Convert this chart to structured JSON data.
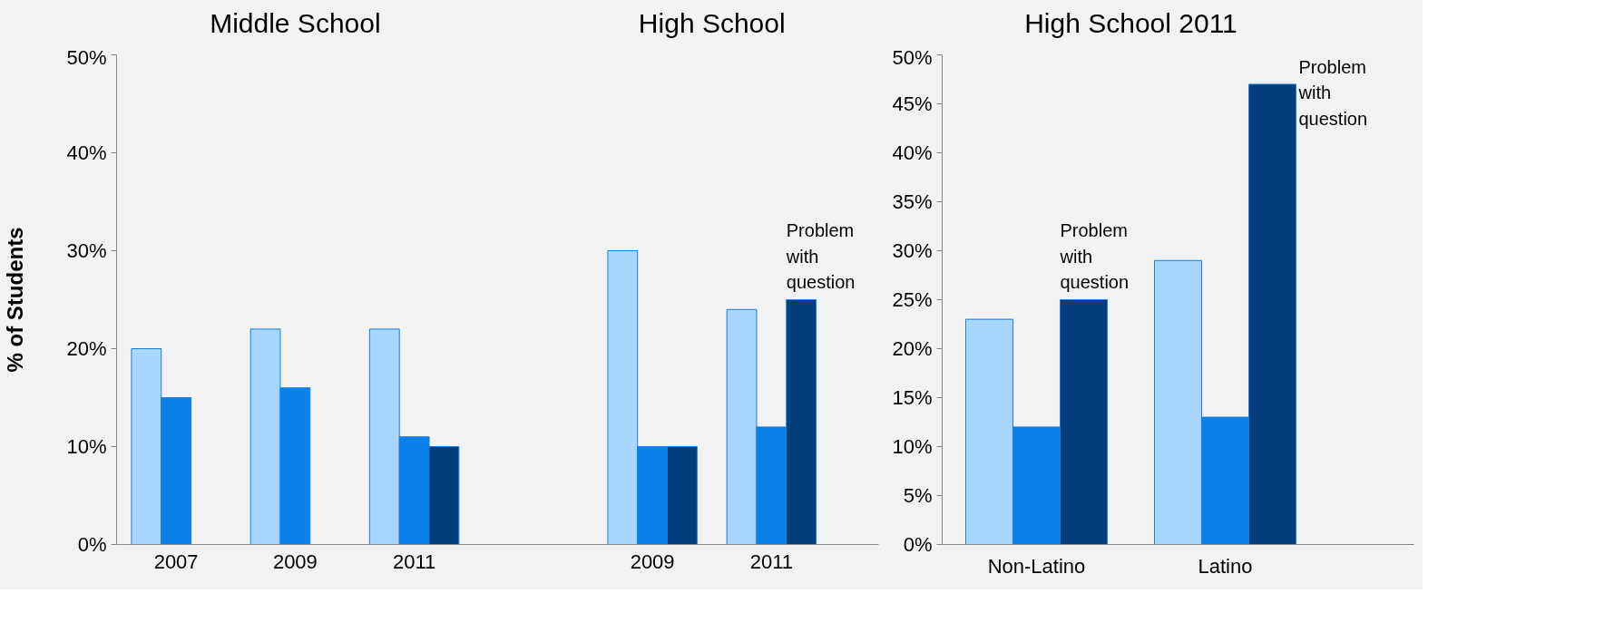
{
  "chart_data": [
    {
      "type": "bar",
      "title": "Middle School",
      "ylabel": "% of Students",
      "categories": [
        "2007",
        "2009",
        "2011",
        null,
        "2009",
        "2011"
      ],
      "series": [
        {
          "color": "#a9d6ff",
          "values": [
            20,
            22,
            22,
            null,
            30,
            24
          ]
        },
        {
          "color": "#0a80e8",
          "values": [
            15,
            16,
            11,
            null,
            10,
            12
          ]
        },
        {
          "color": "#003d79",
          "values": [
            null,
            null,
            10,
            null,
            10,
            25
          ]
        }
      ],
      "annotations": [
        "High School",
        "Problem with question"
      ],
      "ylim": [
        0,
        50
      ],
      "yticks": [
        {
          "value": 0,
          "label": "0%"
        },
        {
          "value": 10,
          "label": "10%"
        },
        {
          "value": 20,
          "label": "20%"
        },
        {
          "value": 30,
          "label": "30%"
        },
        {
          "value": 40,
          "label": "40%"
        },
        {
          "value": 50,
          "label": "50%"
        }
      ]
    },
    {
      "type": "bar",
      "title": "High School 2011",
      "categories": [
        "Non-Latino",
        "Latino"
      ],
      "series": [
        {
          "color": "#a9d6ff",
          "values": [
            23,
            29
          ]
        },
        {
          "color": "#0a80e8",
          "values": [
            12,
            13
          ]
        },
        {
          "color": "#003d79",
          "values": [
            25,
            47
          ]
        }
      ],
      "annotations": [
        "Problem with question",
        "Problem with question"
      ],
      "ylim": [
        0,
        50
      ],
      "yticks": [
        {
          "value": 0,
          "label": "0%"
        },
        {
          "value": 5,
          "label": "5%"
        },
        {
          "value": 10,
          "label": "10%"
        },
        {
          "value": 15,
          "label": "15%"
        },
        {
          "value": 20,
          "label": "20%"
        },
        {
          "value": 25,
          "label": "25%"
        },
        {
          "value": 30,
          "label": "30%"
        },
        {
          "value": 35,
          "label": "35%"
        },
        {
          "value": 40,
          "label": "40%"
        },
        {
          "value": 45,
          "label": "45%"
        },
        {
          "value": 50,
          "label": "50%"
        }
      ]
    }
  ]
}
